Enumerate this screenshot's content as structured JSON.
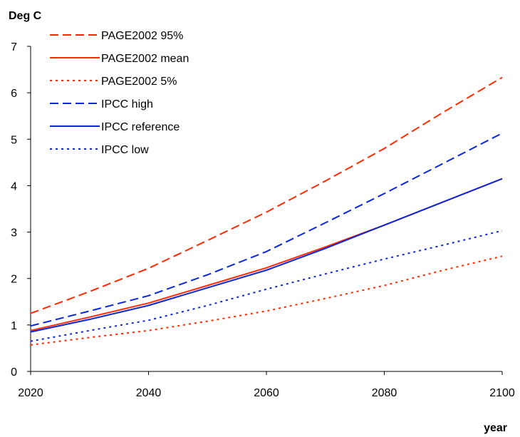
{
  "chart_data": {
    "type": "line",
    "title": "",
    "ylabel": "Deg C",
    "xlabel": "year",
    "xlim": [
      2020,
      2100
    ],
    "ylim": [
      0,
      7
    ],
    "xticks": [
      "2020",
      "2040",
      "2060",
      "2080",
      "2100"
    ],
    "yticks": [
      "0",
      "1",
      "2",
      "3",
      "4",
      "5",
      "6",
      "7"
    ],
    "grid": false,
    "legend_position": "top-left",
    "series": [
      {
        "name": "PAGE2002 95%",
        "color": "#ff2a00",
        "style": "dashed",
        "x": [
          2020,
          2030,
          2040,
          2050,
          2060,
          2070,
          2080,
          2090,
          2100
        ],
        "y": [
          1.25,
          1.72,
          2.22,
          2.82,
          3.43,
          4.1,
          4.8,
          5.58,
          6.33
        ]
      },
      {
        "name": "PAGE2002 mean",
        "color": "#ff2a00",
        "style": "solid",
        "x": [
          2020,
          2030,
          2040,
          2050,
          2060,
          2070,
          2080,
          2090,
          2100
        ],
        "y": [
          0.88,
          1.17,
          1.47,
          1.85,
          2.23,
          2.68,
          3.15,
          3.65,
          4.15
        ]
      },
      {
        "name": "PAGE2002 5%",
        "color": "#ff2a00",
        "style": "dotted",
        "x": [
          2020,
          2030,
          2040,
          2050,
          2060,
          2070,
          2080,
          2090,
          2100
        ],
        "y": [
          0.57,
          0.73,
          0.88,
          1.08,
          1.3,
          1.57,
          1.85,
          2.18,
          2.48
        ]
      },
      {
        "name": "IPCC high",
        "color": "#0b27d6",
        "style": "dashed",
        "x": [
          2020,
          2030,
          2040,
          2050,
          2060,
          2070,
          2080,
          2090,
          2100
        ],
        "y": [
          0.98,
          1.3,
          1.63,
          2.08,
          2.58,
          3.2,
          3.83,
          4.48,
          5.13
        ]
      },
      {
        "name": "IPCC reference",
        "color": "#0b27d6",
        "style": "solid",
        "x": [
          2020,
          2030,
          2040,
          2050,
          2060,
          2070,
          2080,
          2090,
          2100
        ],
        "y": [
          0.85,
          1.12,
          1.42,
          1.8,
          2.18,
          2.65,
          3.15,
          3.65,
          4.15
        ]
      },
      {
        "name": "IPCC low",
        "color": "#0b27d6",
        "style": "dotted",
        "x": [
          2020,
          2030,
          2040,
          2050,
          2060,
          2070,
          2080,
          2090,
          2100
        ],
        "y": [
          0.65,
          0.88,
          1.1,
          1.42,
          1.77,
          2.1,
          2.42,
          2.72,
          3.03
        ]
      }
    ]
  }
}
